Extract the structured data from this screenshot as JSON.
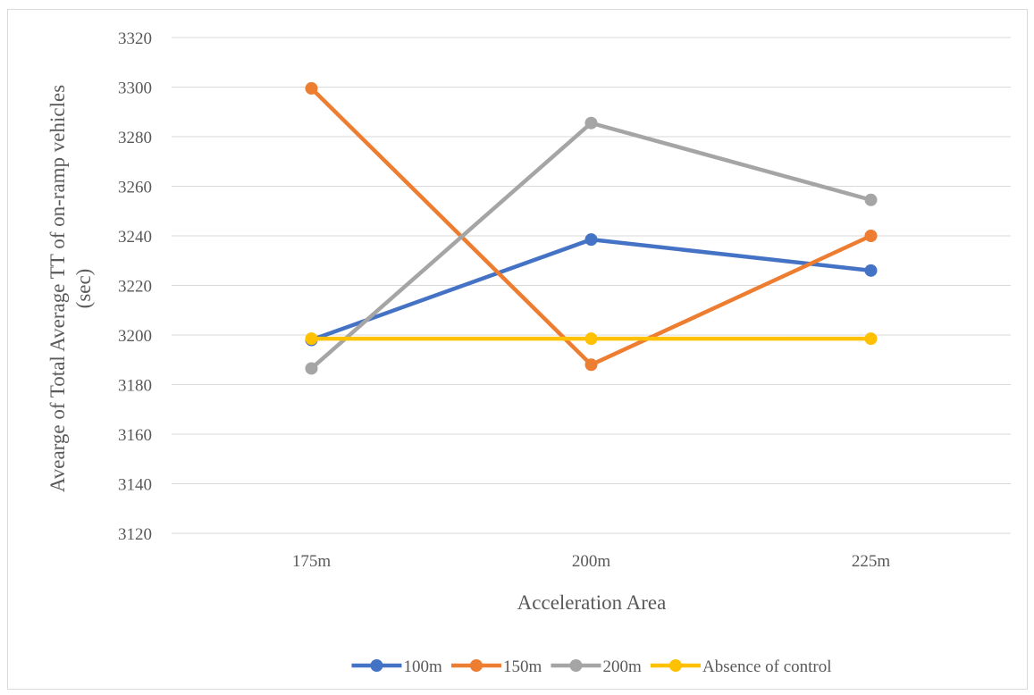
{
  "chart_data": {
    "type": "line",
    "title": "",
    "xlabel": "Acceleration Area",
    "ylabel_line1": "Avearge  of Total  Average TT of on-ramp vehicles",
    "ylabel_line2": "(sec)",
    "categories": [
      "175m",
      "200m",
      "225m"
    ],
    "ylim": [
      3120,
      3320
    ],
    "yticks": [
      3120,
      3140,
      3160,
      3180,
      3200,
      3220,
      3240,
      3260,
      3280,
      3300,
      3320
    ],
    "grid": true,
    "legend_position": "bottom",
    "series": [
      {
        "name": "100m",
        "color": "#4472c4",
        "values": [
          3198,
          3238.5,
          3226
        ]
      },
      {
        "name": "150m",
        "color": "#ed7d31",
        "values": [
          3299.5,
          3188,
          3240
        ]
      },
      {
        "name": "200m",
        "color": "#a5a5a5",
        "values": [
          3186.5,
          3285.5,
          3254.5
        ]
      },
      {
        "name": "Absence of control",
        "color": "#ffc000",
        "values": [
          3198.5,
          3198.5,
          3198.5
        ]
      }
    ]
  }
}
